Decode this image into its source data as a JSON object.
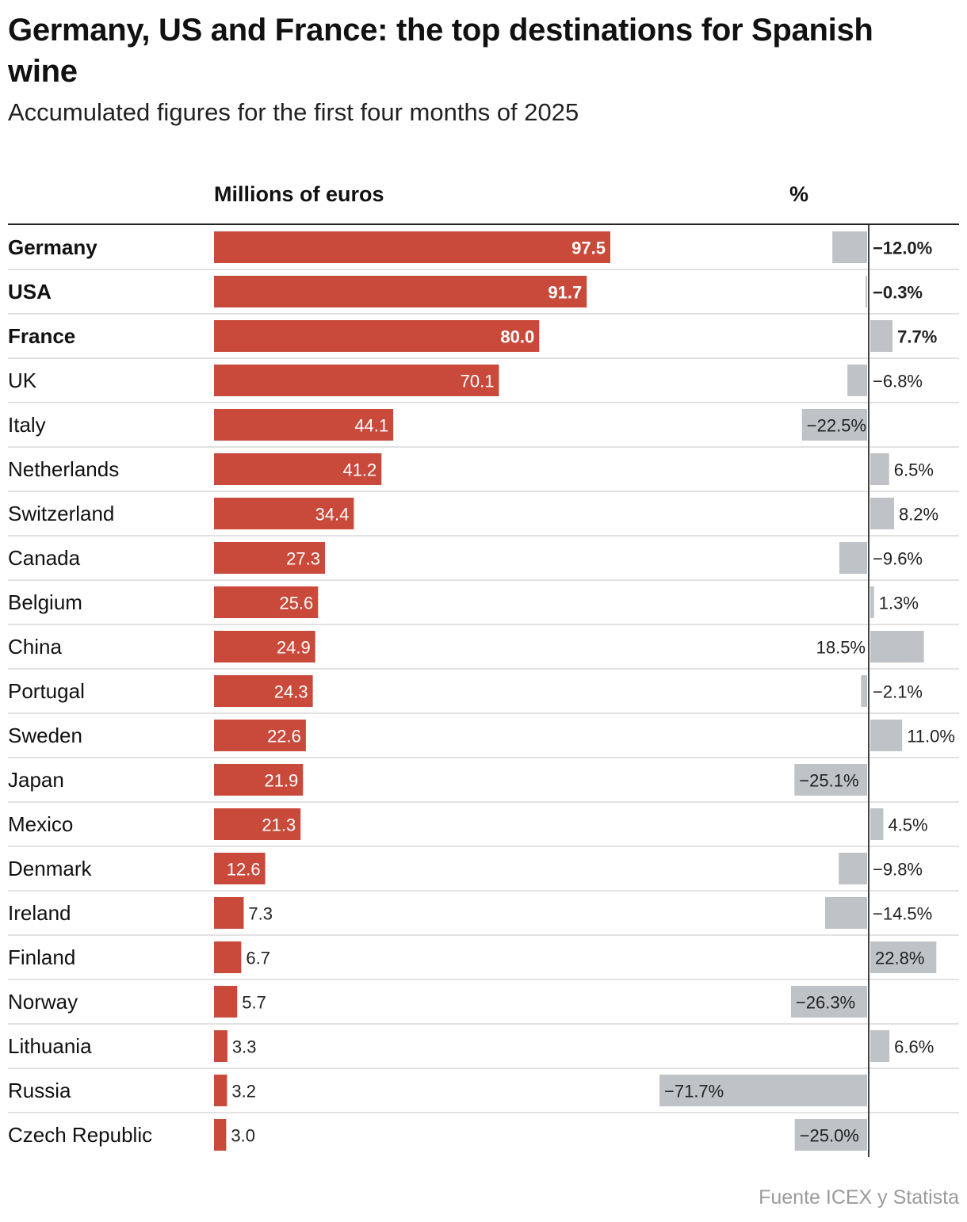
{
  "title": "Germany, US and France: the top destinations for Spanish wine",
  "subtitle": "Accumulated figures for the first four months of 2025",
  "source": "Fuente ICEX y Statista",
  "colors": {
    "value_bar": "#c94a3b",
    "pct_bar": "#bfc3c7",
    "text": "#111111",
    "rule": "#d9d9d9"
  },
  "chart_data": {
    "type": "bar",
    "orientation": "horizontal",
    "value_header": "Millions of euros",
    "pct_header": "%",
    "categories": [
      "Germany",
      "USA",
      "France",
      "UK",
      "Italy",
      "Netherlands",
      "Switzerland",
      "Canada",
      "Belgium",
      "China",
      "Portugal",
      "Sweden",
      "Japan",
      "Mexico",
      "Denmark",
      "Ireland",
      "Finland",
      "Norway",
      "Lithuania",
      "Russia",
      "Czech Republic"
    ],
    "highlighted": [
      "Germany",
      "USA",
      "France"
    ],
    "series": [
      {
        "name": "Millions of euros",
        "values": [
          97.5,
          91.7,
          80.0,
          70.1,
          44.1,
          41.2,
          34.4,
          27.3,
          25.6,
          24.9,
          24.3,
          22.6,
          21.9,
          21.3,
          12.6,
          7.3,
          6.7,
          5.7,
          3.3,
          3.2,
          3.0
        ]
      },
      {
        "name": "%",
        "values": [
          -12.0,
          -0.3,
          7.7,
          -6.8,
          -22.5,
          6.5,
          8.2,
          -9.6,
          1.3,
          18.5,
          -2.1,
          11.0,
          -25.1,
          4.5,
          -9.8,
          -14.5,
          22.8,
          -26.3,
          6.6,
          -71.7,
          -25.0
        ]
      }
    ],
    "value_labels": [
      "97.5",
      "91.7",
      "80.0",
      "70.1",
      "44.1",
      "41.2",
      "34.4",
      "27.3",
      "25.6",
      "24.9",
      "24.3",
      "22.6",
      "21.9",
      "21.3",
      "12.6",
      "7.3",
      "6.7",
      "5.7",
      "3.3",
      "3.2",
      "3.0"
    ],
    "pct_labels": [
      "−12.0%",
      "−0.3%",
      "7.7%",
      "−6.8%",
      "−22.5%",
      "6.5%",
      "8.2%",
      "−9.6%",
      "1.3%",
      "18.5%",
      "−2.1%",
      "11.0%",
      "−25.1%",
      "4.5%",
      "−9.8%",
      "−14.5%",
      "22.8%",
      "−26.3%",
      "6.6%",
      "−71.7%",
      "−25.0%"
    ],
    "value_xlim": [
      0,
      97.5
    ],
    "pct_xlim": [
      -71.7,
      22.8
    ],
    "grid": false
  }
}
